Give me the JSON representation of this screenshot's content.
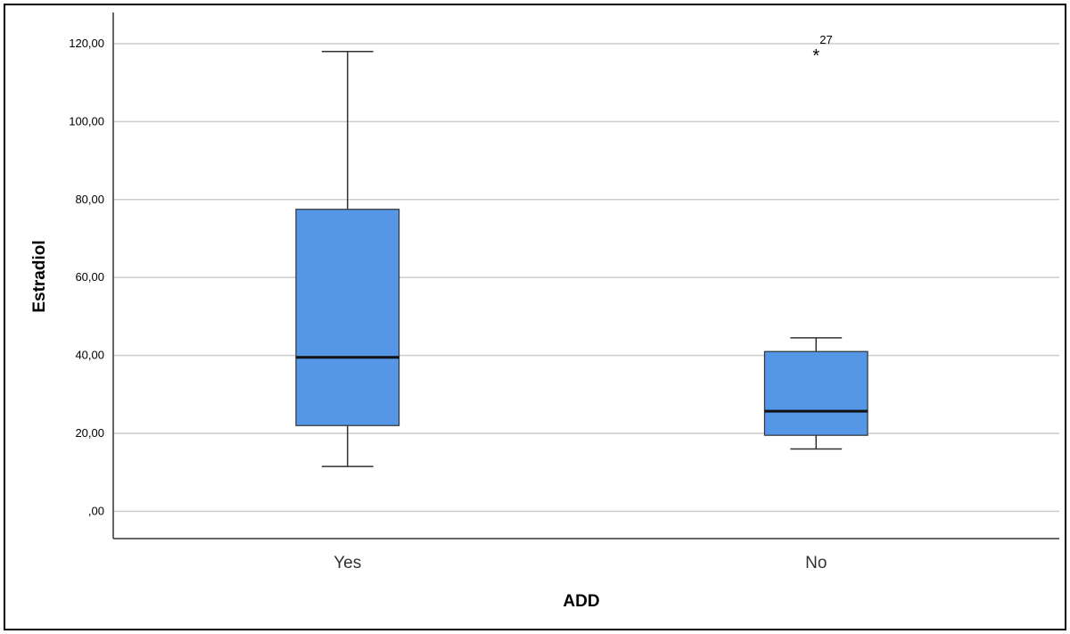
{
  "chart_data": {
    "type": "boxplot",
    "xlabel": "ADD",
    "ylabel": "Estradiol",
    "ylim": [
      -7,
      128
    ],
    "yticks": [
      0,
      20,
      40,
      60,
      80,
      100,
      120
    ],
    "ytick_labels": [
      ",00",
      "20,00",
      "40,00",
      "60,00",
      "80,00",
      "100,00",
      "120,00"
    ],
    "grid": true,
    "box_color": "#5596e6",
    "categories": [
      "Yes",
      "No"
    ],
    "boxes": [
      {
        "category": "Yes",
        "min": 11.5,
        "q1": 22,
        "median": 39.5,
        "q3": 77.5,
        "max": 118,
        "outliers": []
      },
      {
        "category": "No",
        "min": 16,
        "q1": 19.5,
        "median": 25.7,
        "q3": 41,
        "max": 44.5,
        "outliers": [
          {
            "value": 117.5,
            "label": "27",
            "marker": "*"
          }
        ]
      }
    ]
  }
}
